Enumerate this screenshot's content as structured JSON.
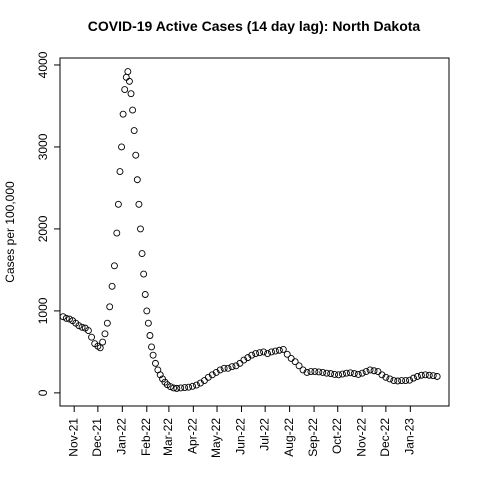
{
  "chart_data": {
    "type": "scatter",
    "title": "COVID-19 Active Cases (14 day lag): North Dakota",
    "y_label": "Cases per 100,000",
    "x": [
      -14,
      -10,
      -6,
      -2,
      2,
      6,
      10,
      14,
      18,
      22,
      26,
      30,
      33,
      36,
      39,
      42,
      45,
      48,
      51,
      54,
      56,
      58,
      60,
      62,
      64,
      66,
      68,
      70,
      72,
      74,
      76,
      78,
      80,
      82,
      84,
      86,
      88,
      90,
      92,
      94,
      96,
      98,
      100,
      103,
      106,
      109,
      112,
      115,
      118,
      122,
      126,
      130,
      135,
      140,
      145,
      150,
      155,
      160,
      165,
      170,
      175,
      180,
      185,
      190,
      195,
      200,
      205,
      210,
      215,
      220,
      225,
      230,
      235,
      240,
      245,
      250,
      255,
      260,
      265,
      270,
      275,
      280,
      285,
      290,
      295,
      300,
      305,
      310,
      315,
      320,
      325,
      330,
      335,
      340,
      345,
      350,
      355,
      360,
      365,
      370,
      375,
      380,
      385,
      390,
      395,
      400,
      405,
      410,
      415,
      420,
      425,
      430,
      435,
      440,
      445,
      450,
      455,
      460
    ],
    "values": [
      930,
      910,
      900,
      880,
      850,
      820,
      800,
      790,
      760,
      680,
      600,
      570,
      550,
      620,
      720,
      850,
      1050,
      1300,
      1550,
      1950,
      2300,
      2700,
      3000,
      3400,
      3700,
      3850,
      3920,
      3800,
      3650,
      3450,
      3200,
      2900,
      2600,
      2300,
      2000,
      1700,
      1450,
      1200,
      1000,
      850,
      700,
      560,
      460,
      360,
      280,
      220,
      170,
      130,
      100,
      75,
      60,
      55,
      60,
      65,
      70,
      80,
      95,
      120,
      150,
      190,
      220,
      250,
      280,
      300,
      300,
      320,
      330,
      360,
      400,
      430,
      460,
      480,
      490,
      500,
      480,
      500,
      510,
      520,
      530,
      470,
      420,
      380,
      330,
      280,
      250,
      260,
      260,
      255,
      250,
      240,
      235,
      225,
      220,
      230,
      240,
      245,
      235,
      225,
      240,
      260,
      280,
      270,
      260,
      220,
      190,
      170,
      150,
      145,
      150,
      150,
      155,
      180,
      200,
      215,
      220,
      215,
      210,
      200
    ],
    "color": "#000000",
    "xlim": [
      -18,
      475
    ],
    "ylim": [
      -160,
      4085
    ],
    "xticks": [
      {
        "value": 0,
        "label": "Nov-21"
      },
      {
        "value": 30,
        "label": "Dec-21"
      },
      {
        "value": 61,
        "label": "Jan-22"
      },
      {
        "value": 92,
        "label": "Feb-22"
      },
      {
        "value": 120,
        "label": "Mar-22"
      },
      {
        "value": 151,
        "label": "Apr-22"
      },
      {
        "value": 181,
        "label": "May-22"
      },
      {
        "value": 212,
        "label": "Jun-22"
      },
      {
        "value": 242,
        "label": "Jul-22"
      },
      {
        "value": 273,
        "label": "Aug-22"
      },
      {
        "value": 304,
        "label": "Sep-22"
      },
      {
        "value": 334,
        "label": "Oct-22"
      },
      {
        "value": 365,
        "label": "Nov-22"
      },
      {
        "value": 395,
        "label": "Dec-22"
      },
      {
        "value": 426,
        "label": "Jan-23"
      }
    ],
    "yticks": [
      0,
      1000,
      2000,
      3000,
      4000
    ]
  }
}
